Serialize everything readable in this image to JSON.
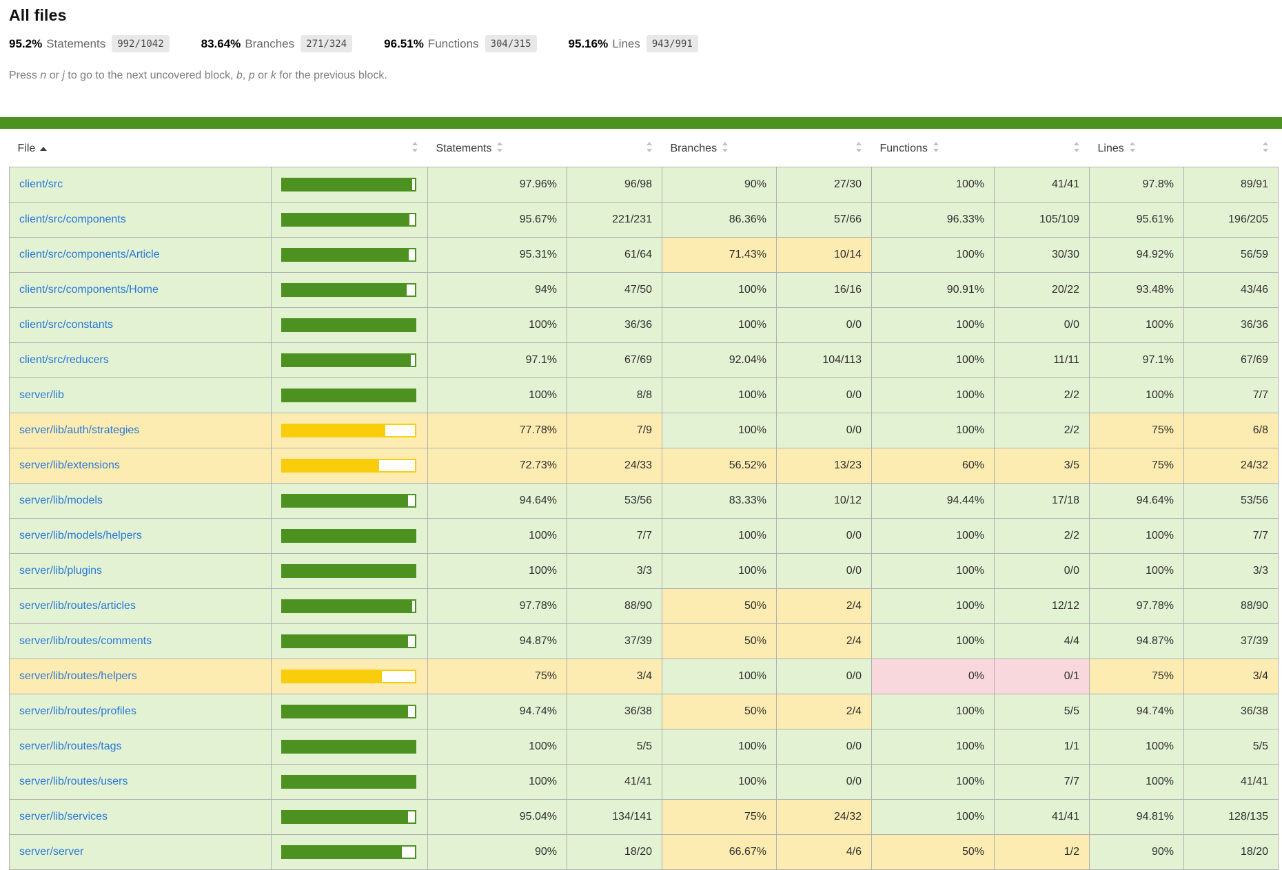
{
  "title": "All files",
  "summary": [
    {
      "pct": "95.2%",
      "label": "Statements",
      "fraction": "992/1042"
    },
    {
      "pct": "83.64%",
      "label": "Branches",
      "fraction": "271/324"
    },
    {
      "pct": "96.51%",
      "label": "Functions",
      "fraction": "304/315"
    },
    {
      "pct": "95.16%",
      "label": "Lines",
      "fraction": "943/991"
    }
  ],
  "hint_segments": [
    "Press ",
    "n",
    " or ",
    "j",
    " to go to the next uncovered block, ",
    "b",
    ", ",
    "p",
    " or ",
    "k",
    " for the previous block."
  ],
  "colors": {
    "status_line": "#4d9221",
    "bar_high": "#4d9221",
    "bar_medium": "#f9cd0b",
    "high_bg": "#e3f2d3",
    "medium_bg": "#fcecb1",
    "low_bg": "#f9d8dd",
    "link": "#2878d9"
  },
  "table": {
    "columns": {
      "file": "File",
      "statements": "Statements",
      "branches": "Branches",
      "functions": "Functions",
      "lines": "Lines"
    },
    "rows": [
      {
        "file": "client/src",
        "row_class": "high",
        "bar": {
          "pct": 97.96,
          "class": "high"
        },
        "statements": {
          "pct": "97.96%",
          "frac": "96/98",
          "class": "high"
        },
        "branches": {
          "pct": "90%",
          "frac": "27/30",
          "class": "high"
        },
        "functions": {
          "pct": "100%",
          "frac": "41/41",
          "class": "high"
        },
        "lines": {
          "pct": "97.8%",
          "frac": "89/91",
          "class": "high"
        }
      },
      {
        "file": "client/src/components",
        "row_class": "high",
        "bar": {
          "pct": 95.67,
          "class": "high"
        },
        "statements": {
          "pct": "95.67%",
          "frac": "221/231",
          "class": "high"
        },
        "branches": {
          "pct": "86.36%",
          "frac": "57/66",
          "class": "high"
        },
        "functions": {
          "pct": "96.33%",
          "frac": "105/109",
          "class": "high"
        },
        "lines": {
          "pct": "95.61%",
          "frac": "196/205",
          "class": "high"
        }
      },
      {
        "file": "client/src/components/Article",
        "row_class": "high",
        "bar": {
          "pct": 95.31,
          "class": "high"
        },
        "statements": {
          "pct": "95.31%",
          "frac": "61/64",
          "class": "high"
        },
        "branches": {
          "pct": "71.43%",
          "frac": "10/14",
          "class": "medium"
        },
        "functions": {
          "pct": "100%",
          "frac": "30/30",
          "class": "high"
        },
        "lines": {
          "pct": "94.92%",
          "frac": "56/59",
          "class": "high"
        }
      },
      {
        "file": "client/src/components/Home",
        "row_class": "high",
        "bar": {
          "pct": 94,
          "class": "high"
        },
        "statements": {
          "pct": "94%",
          "frac": "47/50",
          "class": "high"
        },
        "branches": {
          "pct": "100%",
          "frac": "16/16",
          "class": "high"
        },
        "functions": {
          "pct": "90.91%",
          "frac": "20/22",
          "class": "high"
        },
        "lines": {
          "pct": "93.48%",
          "frac": "43/46",
          "class": "high"
        }
      },
      {
        "file": "client/src/constants",
        "row_class": "high",
        "bar": {
          "pct": 100,
          "class": "high"
        },
        "statements": {
          "pct": "100%",
          "frac": "36/36",
          "class": "high"
        },
        "branches": {
          "pct": "100%",
          "frac": "0/0",
          "class": "high"
        },
        "functions": {
          "pct": "100%",
          "frac": "0/0",
          "class": "high"
        },
        "lines": {
          "pct": "100%",
          "frac": "36/36",
          "class": "high"
        }
      },
      {
        "file": "client/src/reducers",
        "row_class": "high",
        "bar": {
          "pct": 97.1,
          "class": "high"
        },
        "statements": {
          "pct": "97.1%",
          "frac": "67/69",
          "class": "high"
        },
        "branches": {
          "pct": "92.04%",
          "frac": "104/113",
          "class": "high"
        },
        "functions": {
          "pct": "100%",
          "frac": "11/11",
          "class": "high"
        },
        "lines": {
          "pct": "97.1%",
          "frac": "67/69",
          "class": "high"
        }
      },
      {
        "file": "server/lib",
        "row_class": "high",
        "bar": {
          "pct": 100,
          "class": "high"
        },
        "statements": {
          "pct": "100%",
          "frac": "8/8",
          "class": "high"
        },
        "branches": {
          "pct": "100%",
          "frac": "0/0",
          "class": "high"
        },
        "functions": {
          "pct": "100%",
          "frac": "2/2",
          "class": "high"
        },
        "lines": {
          "pct": "100%",
          "frac": "7/7",
          "class": "high"
        }
      },
      {
        "file": "server/lib/auth/strategies",
        "row_class": "medium",
        "bar": {
          "pct": 77.78,
          "class": "medium"
        },
        "statements": {
          "pct": "77.78%",
          "frac": "7/9",
          "class": "medium"
        },
        "branches": {
          "pct": "100%",
          "frac": "0/0",
          "class": "high"
        },
        "functions": {
          "pct": "100%",
          "frac": "2/2",
          "class": "high"
        },
        "lines": {
          "pct": "75%",
          "frac": "6/8",
          "class": "medium"
        }
      },
      {
        "file": "server/lib/extensions",
        "row_class": "medium",
        "bar": {
          "pct": 72.73,
          "class": "medium"
        },
        "statements": {
          "pct": "72.73%",
          "frac": "24/33",
          "class": "medium"
        },
        "branches": {
          "pct": "56.52%",
          "frac": "13/23",
          "class": "medium"
        },
        "functions": {
          "pct": "60%",
          "frac": "3/5",
          "class": "medium"
        },
        "lines": {
          "pct": "75%",
          "frac": "24/32",
          "class": "medium"
        }
      },
      {
        "file": "server/lib/models",
        "row_class": "high",
        "bar": {
          "pct": 94.64,
          "class": "high"
        },
        "statements": {
          "pct": "94.64%",
          "frac": "53/56",
          "class": "high"
        },
        "branches": {
          "pct": "83.33%",
          "frac": "10/12",
          "class": "high"
        },
        "functions": {
          "pct": "94.44%",
          "frac": "17/18",
          "class": "high"
        },
        "lines": {
          "pct": "94.64%",
          "frac": "53/56",
          "class": "high"
        }
      },
      {
        "file": "server/lib/models/helpers",
        "row_class": "high",
        "bar": {
          "pct": 100,
          "class": "high"
        },
        "statements": {
          "pct": "100%",
          "frac": "7/7",
          "class": "high"
        },
        "branches": {
          "pct": "100%",
          "frac": "0/0",
          "class": "high"
        },
        "functions": {
          "pct": "100%",
          "frac": "2/2",
          "class": "high"
        },
        "lines": {
          "pct": "100%",
          "frac": "7/7",
          "class": "high"
        }
      },
      {
        "file": "server/lib/plugins",
        "row_class": "high",
        "bar": {
          "pct": 100,
          "class": "high"
        },
        "statements": {
          "pct": "100%",
          "frac": "3/3",
          "class": "high"
        },
        "branches": {
          "pct": "100%",
          "frac": "0/0",
          "class": "high"
        },
        "functions": {
          "pct": "100%",
          "frac": "0/0",
          "class": "high"
        },
        "lines": {
          "pct": "100%",
          "frac": "3/3",
          "class": "high"
        }
      },
      {
        "file": "server/lib/routes/articles",
        "row_class": "high",
        "bar": {
          "pct": 97.78,
          "class": "high"
        },
        "statements": {
          "pct": "97.78%",
          "frac": "88/90",
          "class": "high"
        },
        "branches": {
          "pct": "50%",
          "frac": "2/4",
          "class": "medium"
        },
        "functions": {
          "pct": "100%",
          "frac": "12/12",
          "class": "high"
        },
        "lines": {
          "pct": "97.78%",
          "frac": "88/90",
          "class": "high"
        }
      },
      {
        "file": "server/lib/routes/comments",
        "row_class": "high",
        "bar": {
          "pct": 94.87,
          "class": "high"
        },
        "statements": {
          "pct": "94.87%",
          "frac": "37/39",
          "class": "high"
        },
        "branches": {
          "pct": "50%",
          "frac": "2/4",
          "class": "medium"
        },
        "functions": {
          "pct": "100%",
          "frac": "4/4",
          "class": "high"
        },
        "lines": {
          "pct": "94.87%",
          "frac": "37/39",
          "class": "high"
        }
      },
      {
        "file": "server/lib/routes/helpers",
        "row_class": "medium",
        "bar": {
          "pct": 75,
          "class": "medium"
        },
        "statements": {
          "pct": "75%",
          "frac": "3/4",
          "class": "medium"
        },
        "branches": {
          "pct": "100%",
          "frac": "0/0",
          "class": "high"
        },
        "functions": {
          "pct": "0%",
          "frac": "0/1",
          "class": "low"
        },
        "lines": {
          "pct": "75%",
          "frac": "3/4",
          "class": "medium"
        }
      },
      {
        "file": "server/lib/routes/profiles",
        "row_class": "high",
        "bar": {
          "pct": 94.74,
          "class": "high"
        },
        "statements": {
          "pct": "94.74%",
          "frac": "36/38",
          "class": "high"
        },
        "branches": {
          "pct": "50%",
          "frac": "2/4",
          "class": "medium"
        },
        "functions": {
          "pct": "100%",
          "frac": "5/5",
          "class": "high"
        },
        "lines": {
          "pct": "94.74%",
          "frac": "36/38",
          "class": "high"
        }
      },
      {
        "file": "server/lib/routes/tags",
        "row_class": "high",
        "bar": {
          "pct": 100,
          "class": "high"
        },
        "statements": {
          "pct": "100%",
          "frac": "5/5",
          "class": "high"
        },
        "branches": {
          "pct": "100%",
          "frac": "0/0",
          "class": "high"
        },
        "functions": {
          "pct": "100%",
          "frac": "1/1",
          "class": "high"
        },
        "lines": {
          "pct": "100%",
          "frac": "5/5",
          "class": "high"
        }
      },
      {
        "file": "server/lib/routes/users",
        "row_class": "high",
        "bar": {
          "pct": 100,
          "class": "high"
        },
        "statements": {
          "pct": "100%",
          "frac": "41/41",
          "class": "high"
        },
        "branches": {
          "pct": "100%",
          "frac": "0/0",
          "class": "high"
        },
        "functions": {
          "pct": "100%",
          "frac": "7/7",
          "class": "high"
        },
        "lines": {
          "pct": "100%",
          "frac": "41/41",
          "class": "high"
        }
      },
      {
        "file": "server/lib/services",
        "row_class": "high",
        "bar": {
          "pct": 95.04,
          "class": "high"
        },
        "statements": {
          "pct": "95.04%",
          "frac": "134/141",
          "class": "high"
        },
        "branches": {
          "pct": "75%",
          "frac": "24/32",
          "class": "medium"
        },
        "functions": {
          "pct": "100%",
          "frac": "41/41",
          "class": "high"
        },
        "lines": {
          "pct": "94.81%",
          "frac": "128/135",
          "class": "high"
        }
      },
      {
        "file": "server/server",
        "row_class": "high",
        "bar": {
          "pct": 90,
          "class": "high"
        },
        "statements": {
          "pct": "90%",
          "frac": "18/20",
          "class": "high"
        },
        "branches": {
          "pct": "66.67%",
          "frac": "4/6",
          "class": "medium"
        },
        "functions": {
          "pct": "50%",
          "frac": "1/2",
          "class": "medium"
        },
        "lines": {
          "pct": "90%",
          "frac": "18/20",
          "class": "high"
        }
      }
    ]
  }
}
